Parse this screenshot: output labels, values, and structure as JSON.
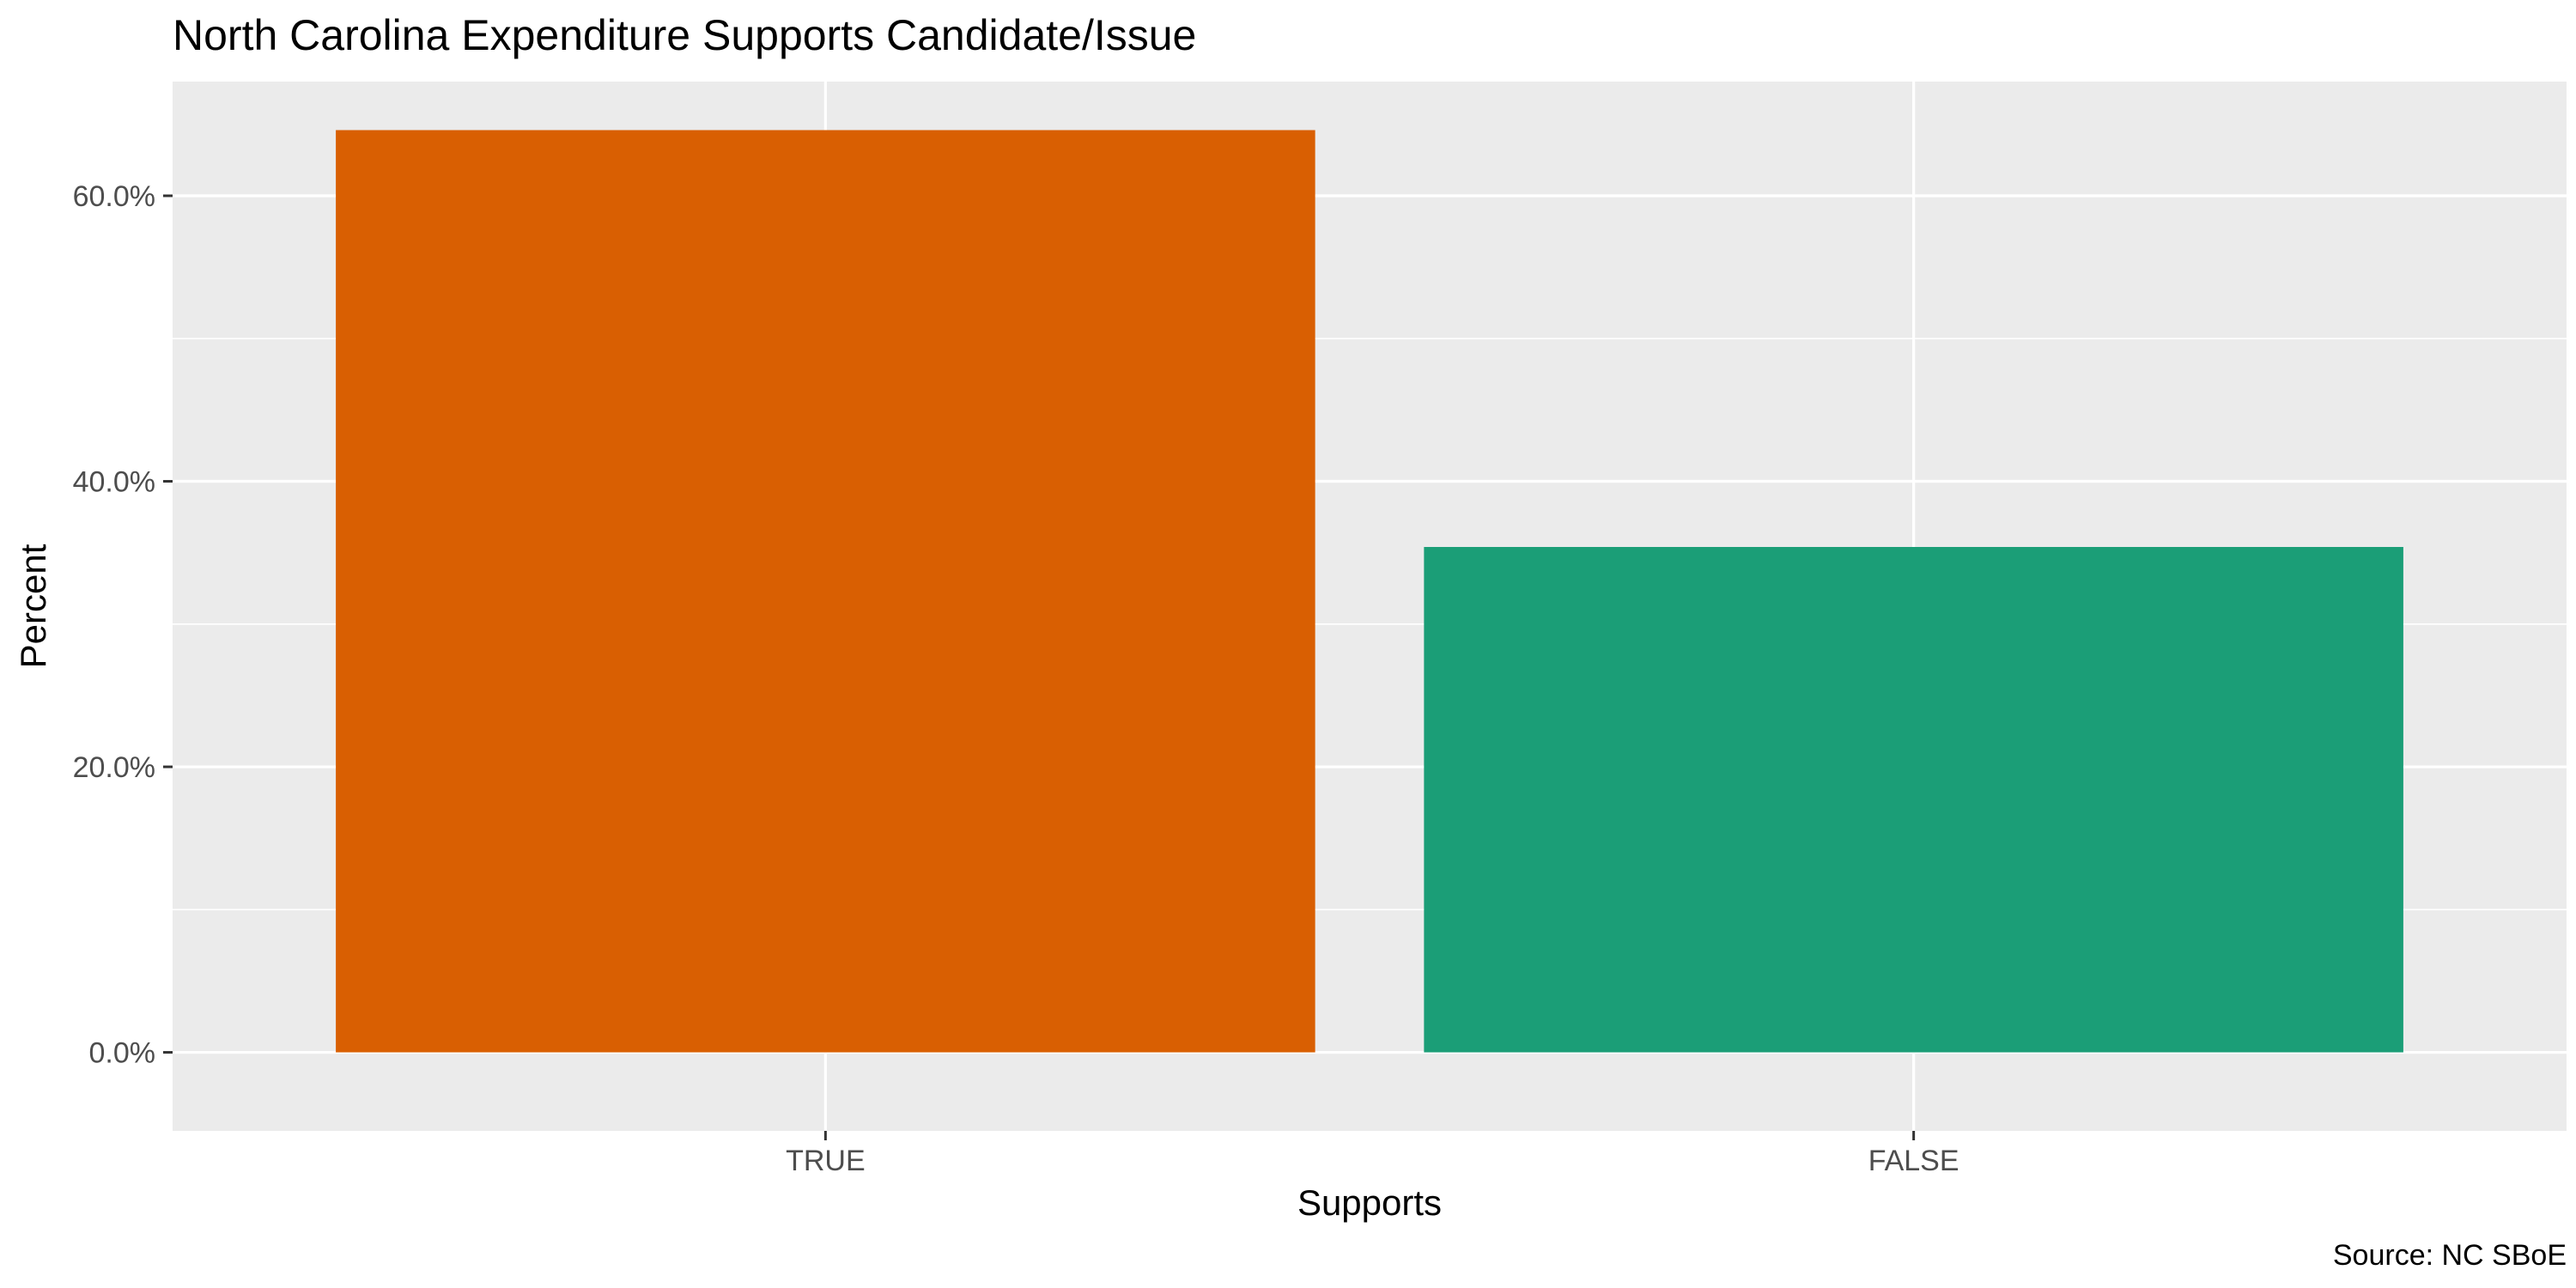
{
  "chart_data": {
    "type": "bar",
    "title": "North Carolina Expenditure Supports Candidate/Issue",
    "xlabel": "Supports",
    "ylabel": "Percent",
    "caption": "Source: NC SBoE",
    "categories": [
      "TRUE",
      "FALSE"
    ],
    "values": [
      0.646,
      0.354
    ],
    "colors": [
      "#d95f02",
      "#1b9e77"
    ],
    "ylim": [
      -0.055,
      0.68
    ],
    "yticks": [
      0.0,
      0.2,
      0.4,
      0.6
    ],
    "ytick_labels": [
      "0.0%",
      "20.0%",
      "40.0%",
      "60.0%"
    ],
    "grid": true,
    "panel_background": "#ebebeb",
    "grid_color": "#ffffff"
  }
}
